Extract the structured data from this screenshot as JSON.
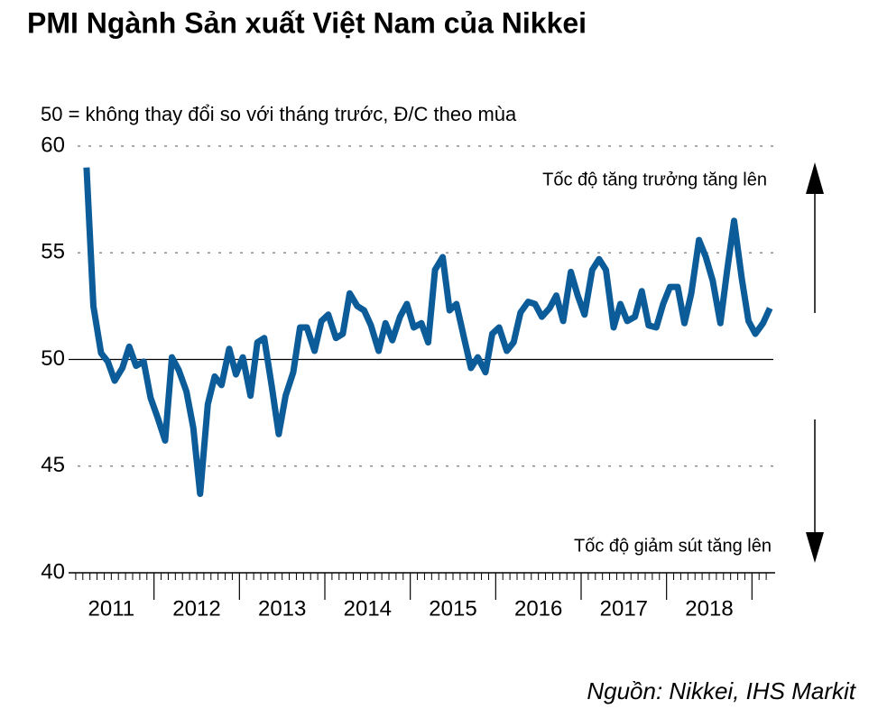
{
  "chart_data": {
    "type": "line",
    "title": "PMI Ngành Sản xuất Việt Nam của Nikkei",
    "subtitle": "50 = không thay đổi so với tháng trước, Đ/C theo mùa",
    "annotation_up": "Tốc độ tăng trưởng tăng lên",
    "annotation_down": "Tốc độ giảm sút tăng lên",
    "source": "Nguồn: Nikkei, IHS Markit",
    "x": [
      2011.21,
      2011.29,
      2011.38,
      2011.46,
      2011.54,
      2011.63,
      2011.71,
      2011.79,
      2011.88,
      2011.96,
      2012.04,
      2012.13,
      2012.21,
      2012.29,
      2012.38,
      2012.46,
      2012.54,
      2012.63,
      2012.71,
      2012.79,
      2012.88,
      2012.96,
      2013.04,
      2013.13,
      2013.21,
      2013.29,
      2013.38,
      2013.46,
      2013.54,
      2013.63,
      2013.71,
      2013.79,
      2013.88,
      2013.96,
      2014.04,
      2014.13,
      2014.21,
      2014.29,
      2014.38,
      2014.46,
      2014.54,
      2014.63,
      2014.71,
      2014.79,
      2014.88,
      2014.96,
      2015.04,
      2015.13,
      2015.21,
      2015.29,
      2015.38,
      2015.46,
      2015.54,
      2015.63,
      2015.71,
      2015.79,
      2015.88,
      2015.96,
      2016.04,
      2016.13,
      2016.21,
      2016.29,
      2016.38,
      2016.46,
      2016.54,
      2016.63,
      2016.71,
      2016.79,
      2016.88,
      2016.96,
      2017.04,
      2017.13,
      2017.21,
      2017.29,
      2017.38,
      2017.46,
      2017.54,
      2017.63,
      2017.71,
      2017.79,
      2017.88,
      2017.96,
      2018.04,
      2018.13,
      2018.21,
      2018.29,
      2018.38,
      2018.46,
      2018.54,
      2018.63,
      2018.71,
      2018.79,
      2018.88,
      2018.96,
      2019.04,
      2019.13,
      2019.21
    ],
    "series": [
      {
        "name": "PMI",
        "color": "#0b5c99",
        "values": [
          59.0,
          52.5,
          50.3,
          49.9,
          49.0,
          49.6,
          50.6,
          49.7,
          49.9,
          48.2,
          47.3,
          46.2,
          50.1,
          49.5,
          48.5,
          46.8,
          43.7,
          47.9,
          49.2,
          48.8,
          50.5,
          49.3,
          50.1,
          48.3,
          50.8,
          51.0,
          48.7,
          46.5,
          48.3,
          49.4,
          51.5,
          51.5,
          50.4,
          51.8,
          52.1,
          51.0,
          51.2,
          53.1,
          52.5,
          52.3,
          51.6,
          50.4,
          51.7,
          50.9,
          52.0,
          52.6,
          51.5,
          51.7,
          50.8,
          54.2,
          54.8,
          52.3,
          52.6,
          51.0,
          49.6,
          50.1,
          49.4,
          51.2,
          51.5,
          50.4,
          50.8,
          52.2,
          52.7,
          52.6,
          52.0,
          52.4,
          53.0,
          51.8,
          54.1,
          53.0,
          52.1,
          54.2,
          54.7,
          54.2,
          51.5,
          52.6,
          51.8,
          52.0,
          53.2,
          51.6,
          51.5,
          52.6,
          53.4,
          53.4,
          51.7,
          53.1,
          55.6,
          54.8,
          53.7,
          51.7,
          54.2,
          56.5,
          53.8,
          51.8,
          51.2,
          51.7,
          52.4
        ]
      }
    ],
    "xlim": [
      2011,
      2019.25
    ],
    "xticks": [
      2012,
      2013,
      2014,
      2015,
      2016,
      2017,
      2018,
      2019
    ],
    "xtick_labels": [
      {
        "value": 2011.5,
        "label": "2011"
      },
      {
        "value": 2012.5,
        "label": "2012"
      },
      {
        "value": 2013.5,
        "label": "2013"
      },
      {
        "value": 2014.5,
        "label": "2014"
      },
      {
        "value": 2015.5,
        "label": "2015"
      },
      {
        "value": 2016.5,
        "label": "2016"
      },
      {
        "value": 2017.5,
        "label": "2017"
      },
      {
        "value": 2018.5,
        "label": "2018"
      }
    ],
    "ylim": [
      40,
      60
    ],
    "yticks": [
      40,
      45,
      50,
      55,
      60
    ],
    "hline": 50,
    "grid": true
  }
}
